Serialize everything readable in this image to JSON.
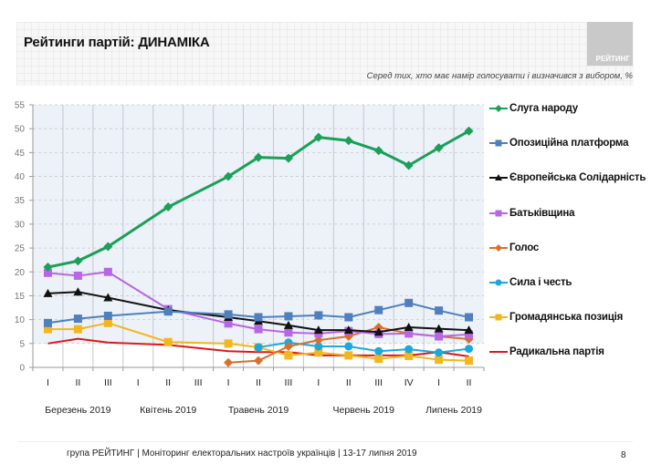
{
  "header": {
    "title": "Рейтинги партій: ДИНАМІКА",
    "logo_text": "РЕЙТИНГ",
    "subtitle": "Серед тих, хто має намір голосувати і визначився з вибором, %"
  },
  "footer": {
    "text": "група РЕЙТИНГ | Моніторинг електоральних настроїв українців | 13-17 липня 2019",
    "page_number": "8"
  },
  "chart_data": {
    "type": "line",
    "title": "Рейтинги партій: ДИНАМІКА",
    "xlabel": "",
    "ylabel": "%",
    "ylim": [
      0,
      55
    ],
    "yticks": [
      0,
      5,
      10,
      15,
      20,
      25,
      30,
      35,
      40,
      45,
      50,
      55
    ],
    "grid": true,
    "legend_position": "right",
    "categories": [
      "I",
      "II",
      "III",
      "I",
      "II",
      "III",
      "I",
      "II",
      "III",
      "I",
      "II",
      "III",
      "IV",
      "I",
      "II"
    ],
    "month_groups": [
      {
        "label": "Березень 2019",
        "span": [
          0,
          2
        ]
      },
      {
        "label": "Квітень 2019",
        "span": [
          3,
          5
        ]
      },
      {
        "label": "Травень 2019",
        "span": [
          6,
          8
        ]
      },
      {
        "label": "Червень 2019",
        "span": [
          9,
          12
        ]
      },
      {
        "label": "Липень 2019",
        "span": [
          13,
          14
        ]
      }
    ],
    "series": [
      {
        "name": "Слуга народу",
        "color": "#1aa057",
        "marker": "diamond",
        "values": [
          21.0,
          22.3,
          25.3,
          null,
          33.6,
          null,
          40.0,
          44.0,
          43.8,
          48.2,
          47.5,
          45.4,
          42.3,
          46.0,
          49.5
        ]
      },
      {
        "name": "Опозиційна платформа",
        "color": "#4f7fbd",
        "marker": "square",
        "values": [
          9.3,
          10.2,
          10.8,
          null,
          11.7,
          null,
          11.1,
          10.5,
          10.7,
          10.9,
          10.5,
          12.0,
          13.5,
          11.9,
          10.5
        ]
      },
      {
        "name": "Європейська Солідарність",
        "color": "#111111",
        "marker": "triangle",
        "values": [
          15.5,
          15.8,
          14.6,
          null,
          12.0,
          null,
          10.5,
          9.7,
          8.8,
          7.8,
          7.8,
          7.4,
          8.4,
          8.1,
          7.8
        ]
      },
      {
        "name": "Батьківщина",
        "color": "#b866e8",
        "marker": "square",
        "values": [
          19.8,
          19.2,
          20.0,
          null,
          12.2,
          null,
          9.2,
          8.0,
          7.3,
          7.1,
          7.6,
          7.0,
          7.1,
          6.5,
          6.9
        ]
      },
      {
        "name": "Голос",
        "color": "#d8702a",
        "marker": "diamond",
        "values": [
          null,
          null,
          null,
          null,
          null,
          null,
          1.0,
          1.4,
          4.4,
          5.7,
          6.5,
          8.4,
          7.1,
          6.5,
          5.9
        ]
      },
      {
        "name": "Сила і честь",
        "color": "#1ba8df",
        "marker": "circle",
        "values": [
          null,
          null,
          null,
          null,
          null,
          null,
          null,
          4.2,
          5.2,
          4.4,
          4.4,
          3.4,
          3.8,
          3.1,
          3.9
        ]
      },
      {
        "name": "Громадянська позиція",
        "color": "#f2b71e",
        "marker": "square",
        "values": [
          8.0,
          8.0,
          9.3,
          null,
          5.3,
          null,
          5.0,
          4.2,
          2.5,
          3.1,
          2.5,
          1.8,
          2.4,
          1.6,
          1.4
        ]
      },
      {
        "name": "Радикальна партія",
        "color": "#dd1a1a",
        "marker": "none",
        "values": [
          5.0,
          6.0,
          5.2,
          null,
          4.7,
          null,
          3.4,
          3.2,
          3.2,
          2.5,
          2.5,
          2.5,
          2.5,
          3.2,
          2.3
        ]
      }
    ]
  }
}
